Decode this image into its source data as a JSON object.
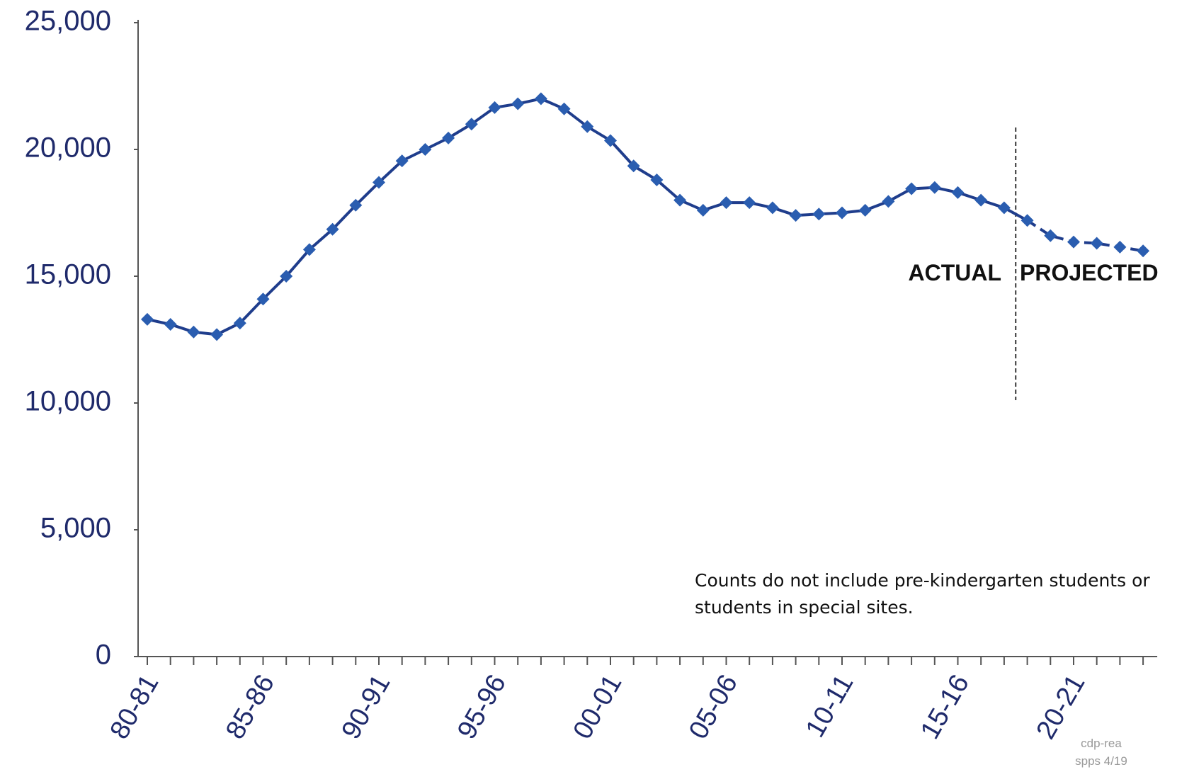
{
  "chart_data": {
    "type": "line",
    "categories": [
      "80-81",
      null,
      null,
      null,
      null,
      "85-86",
      null,
      null,
      null,
      null,
      "90-91",
      null,
      null,
      null,
      null,
      "95-96",
      null,
      null,
      null,
      null,
      "00-01",
      null,
      null,
      null,
      null,
      "05-06",
      null,
      null,
      null,
      null,
      "10-11",
      null,
      null,
      null,
      null,
      "15-16",
      null,
      null,
      null,
      null,
      "20-21",
      null,
      null,
      null
    ],
    "series": [
      {
        "color": "#1f3d8c",
        "marker_color": "#2a5db0",
        "dashed_from": 38,
        "values": [
          13300,
          13100,
          12800,
          12700,
          13150,
          14100,
          15000,
          16050,
          16850,
          17800,
          18700,
          19550,
          20000,
          20450,
          21000,
          21650,
          21800,
          22000,
          21600,
          20900,
          20350,
          19350,
          18800,
          18000,
          17600,
          17900,
          17900,
          17700,
          17400,
          17450,
          17500,
          17600,
          17950,
          18450,
          18500,
          18300,
          18000,
          17700,
          17200,
          16600,
          16350,
          16300,
          16150,
          16000
        ]
      }
    ],
    "ylim": [
      0,
      25000
    ],
    "yticks": [
      {
        "value": 0,
        "label": "0"
      },
      {
        "value": 5000,
        "label": "5,000"
      },
      {
        "value": 10000,
        "label": "10,000"
      },
      {
        "value": 15000,
        "label": "15,000"
      },
      {
        "value": 20000,
        "label": "20,000"
      },
      {
        "value": 25000,
        "label": "25,000"
      }
    ],
    "annotations": [
      "ACTUAL",
      "PROJECTED"
    ],
    "note": [
      "Counts do not include pre-kindergarten students or",
      "students in special sites."
    ],
    "stamp": [
      "cdp-rea",
      "spps 4/19"
    ]
  }
}
